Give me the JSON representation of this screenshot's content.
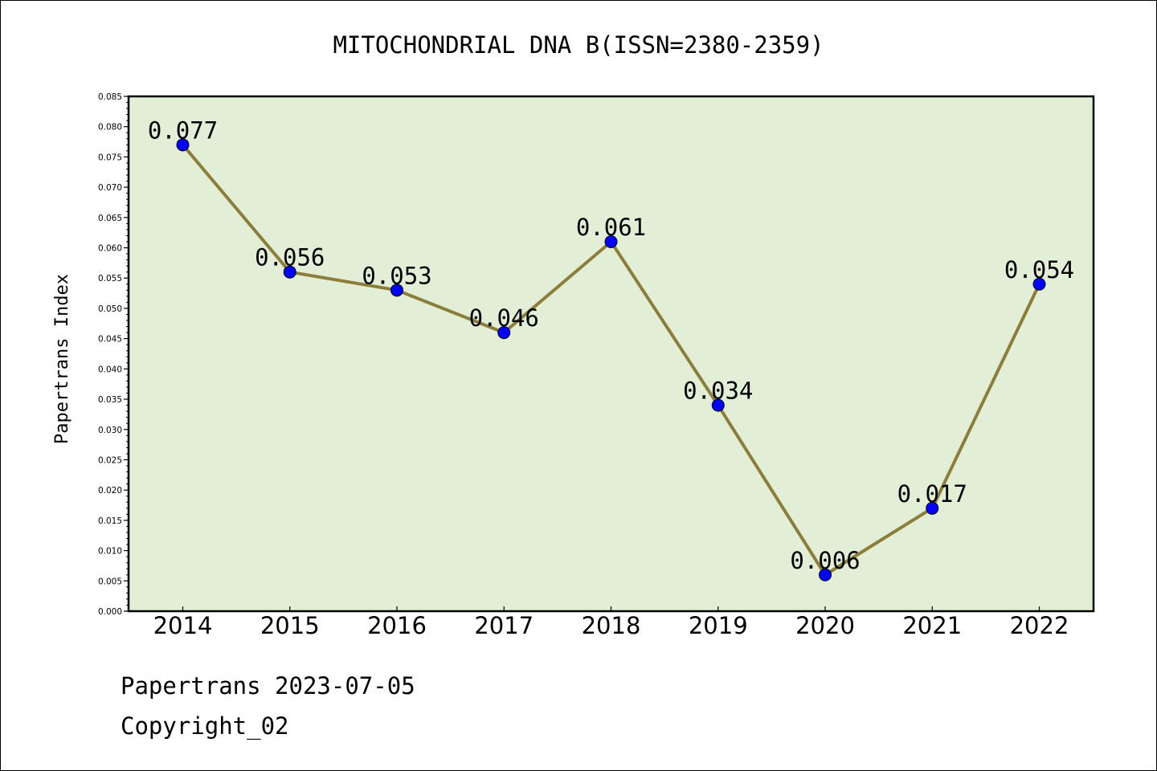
{
  "chart_data": {
    "type": "line",
    "title": "MITOCHONDRIAL DNA B(ISSN=2380-2359)",
    "xlabel": "",
    "ylabel": "Papertrans Index",
    "categories": [
      "2014",
      "2015",
      "2016",
      "2017",
      "2018",
      "2019",
      "2020",
      "2021",
      "2022"
    ],
    "values": [
      0.077,
      0.056,
      0.053,
      0.046,
      0.061,
      0.034,
      0.006,
      0.017,
      0.054
    ],
    "data_labels": [
      "0.077",
      "0.056",
      "0.053",
      "0.046",
      "0.061",
      "0.034",
      "0.006",
      "0.017",
      "0.054"
    ],
    "ylim": [
      0,
      0.085
    ],
    "yticks": [
      "0.000",
      "0.005",
      "0.010",
      "0.015",
      "0.020",
      "0.025",
      "0.030",
      "0.035",
      "0.040",
      "0.045",
      "0.050",
      "0.055",
      "0.060",
      "0.065",
      "0.070",
      "0.075",
      "0.080",
      "0.085"
    ],
    "grid": false,
    "colors": {
      "plot_background": "#e2efd6",
      "line": "#8c7e3a",
      "marker": "#0000ff"
    }
  },
  "footer": {
    "line1": "Papertrans 2023-07-05",
    "line2": "Copyright_02"
  }
}
